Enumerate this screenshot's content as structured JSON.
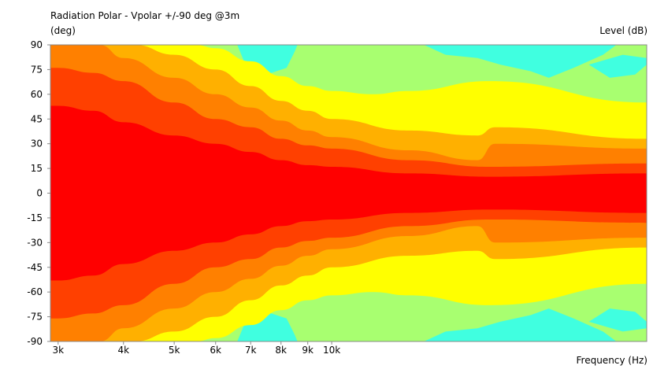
{
  "chart_data": {
    "type": "heatmap",
    "title": "Radiation Polar - Vpolar +/-90 deg @3m",
    "ylabel": "(deg)",
    "colorbar_label": "Level  (dB)",
    "xlabel": "Frequency  (Hz)",
    "x_scale": "log",
    "xlim": [
      2900,
      40000
    ],
    "ylim": [
      -90,
      90
    ],
    "y_ticks": [
      90,
      75,
      60,
      45,
      30,
      15,
      0,
      -15,
      -30,
      -45,
      -60,
      -75,
      -90
    ],
    "x_ticks": [
      {
        "value": 3000,
        "label": "3k"
      },
      {
        "value": 4000,
        "label": "4k"
      },
      {
        "value": 5000,
        "label": "5k"
      },
      {
        "value": 6000,
        "label": "6k"
      },
      {
        "value": 7000,
        "label": "7k"
      },
      {
        "value": 8000,
        "label": "8k"
      },
      {
        "value": 9000,
        "label": "9k"
      },
      {
        "value": 10000,
        "label": "10k"
      }
    ],
    "level_colors": [
      "#ff0000",
      "#ff4000",
      "#ff8000",
      "#ffb000",
      "#ffff00",
      "#e0ff40",
      "#a8ff70",
      "#40ffe0"
    ],
    "contour_boundaries": {
      "note_units": "each boundary: list of [frequency_hz, angle_deg]; symmetric about 0 deg",
      "red": [
        [
          3000,
          53
        ],
        [
          3500,
          50
        ],
        [
          4000,
          43
        ],
        [
          5000,
          35
        ],
        [
          6000,
          30
        ],
        [
          7000,
          25
        ],
        [
          8000,
          20
        ],
        [
          9000,
          17
        ],
        [
          10000,
          16
        ],
        [
          14000,
          12
        ],
        [
          20000,
          10
        ],
        [
          40000,
          12
        ]
      ],
      "red_orange": [
        [
          3000,
          76
        ],
        [
          3500,
          73
        ],
        [
          4000,
          68
        ],
        [
          5000,
          55
        ],
        [
          6000,
          45
        ],
        [
          7000,
          40
        ],
        [
          8000,
          33
        ],
        [
          9000,
          29
        ],
        [
          10000,
          27
        ],
        [
          14000,
          20
        ],
        [
          20000,
          16
        ],
        [
          40000,
          18
        ]
      ],
      "orange": [
        [
          3000,
          90
        ],
        [
          3600,
          90
        ],
        [
          4000,
          82
        ],
        [
          5000,
          70
        ],
        [
          6000,
          60
        ],
        [
          7000,
          52
        ],
        [
          8000,
          44
        ],
        [
          9000,
          38
        ],
        [
          10000,
          34
        ],
        [
          14000,
          26
        ],
        [
          19000,
          20
        ],
        [
          20500,
          30
        ],
        [
          40000,
          27
        ]
      ],
      "amber": [
        [
          4200,
          90
        ],
        [
          5000,
          84
        ],
        [
          6000,
          75
        ],
        [
          7000,
          65
        ],
        [
          8000,
          56
        ],
        [
          9000,
          50
        ],
        [
          10000,
          45
        ],
        [
          14000,
          38
        ],
        [
          19000,
          35
        ],
        [
          20500,
          40
        ],
        [
          40000,
          33
        ]
      ],
      "yellow": [
        [
          5500,
          90
        ],
        [
          6000,
          88
        ],
        [
          7000,
          80
        ],
        [
          8000,
          71
        ],
        [
          9000,
          65
        ],
        [
          10000,
          62
        ],
        [
          12000,
          60
        ],
        [
          14000,
          62
        ],
        [
          20000,
          68
        ],
        [
          40000,
          55
        ]
      ]
    }
  }
}
